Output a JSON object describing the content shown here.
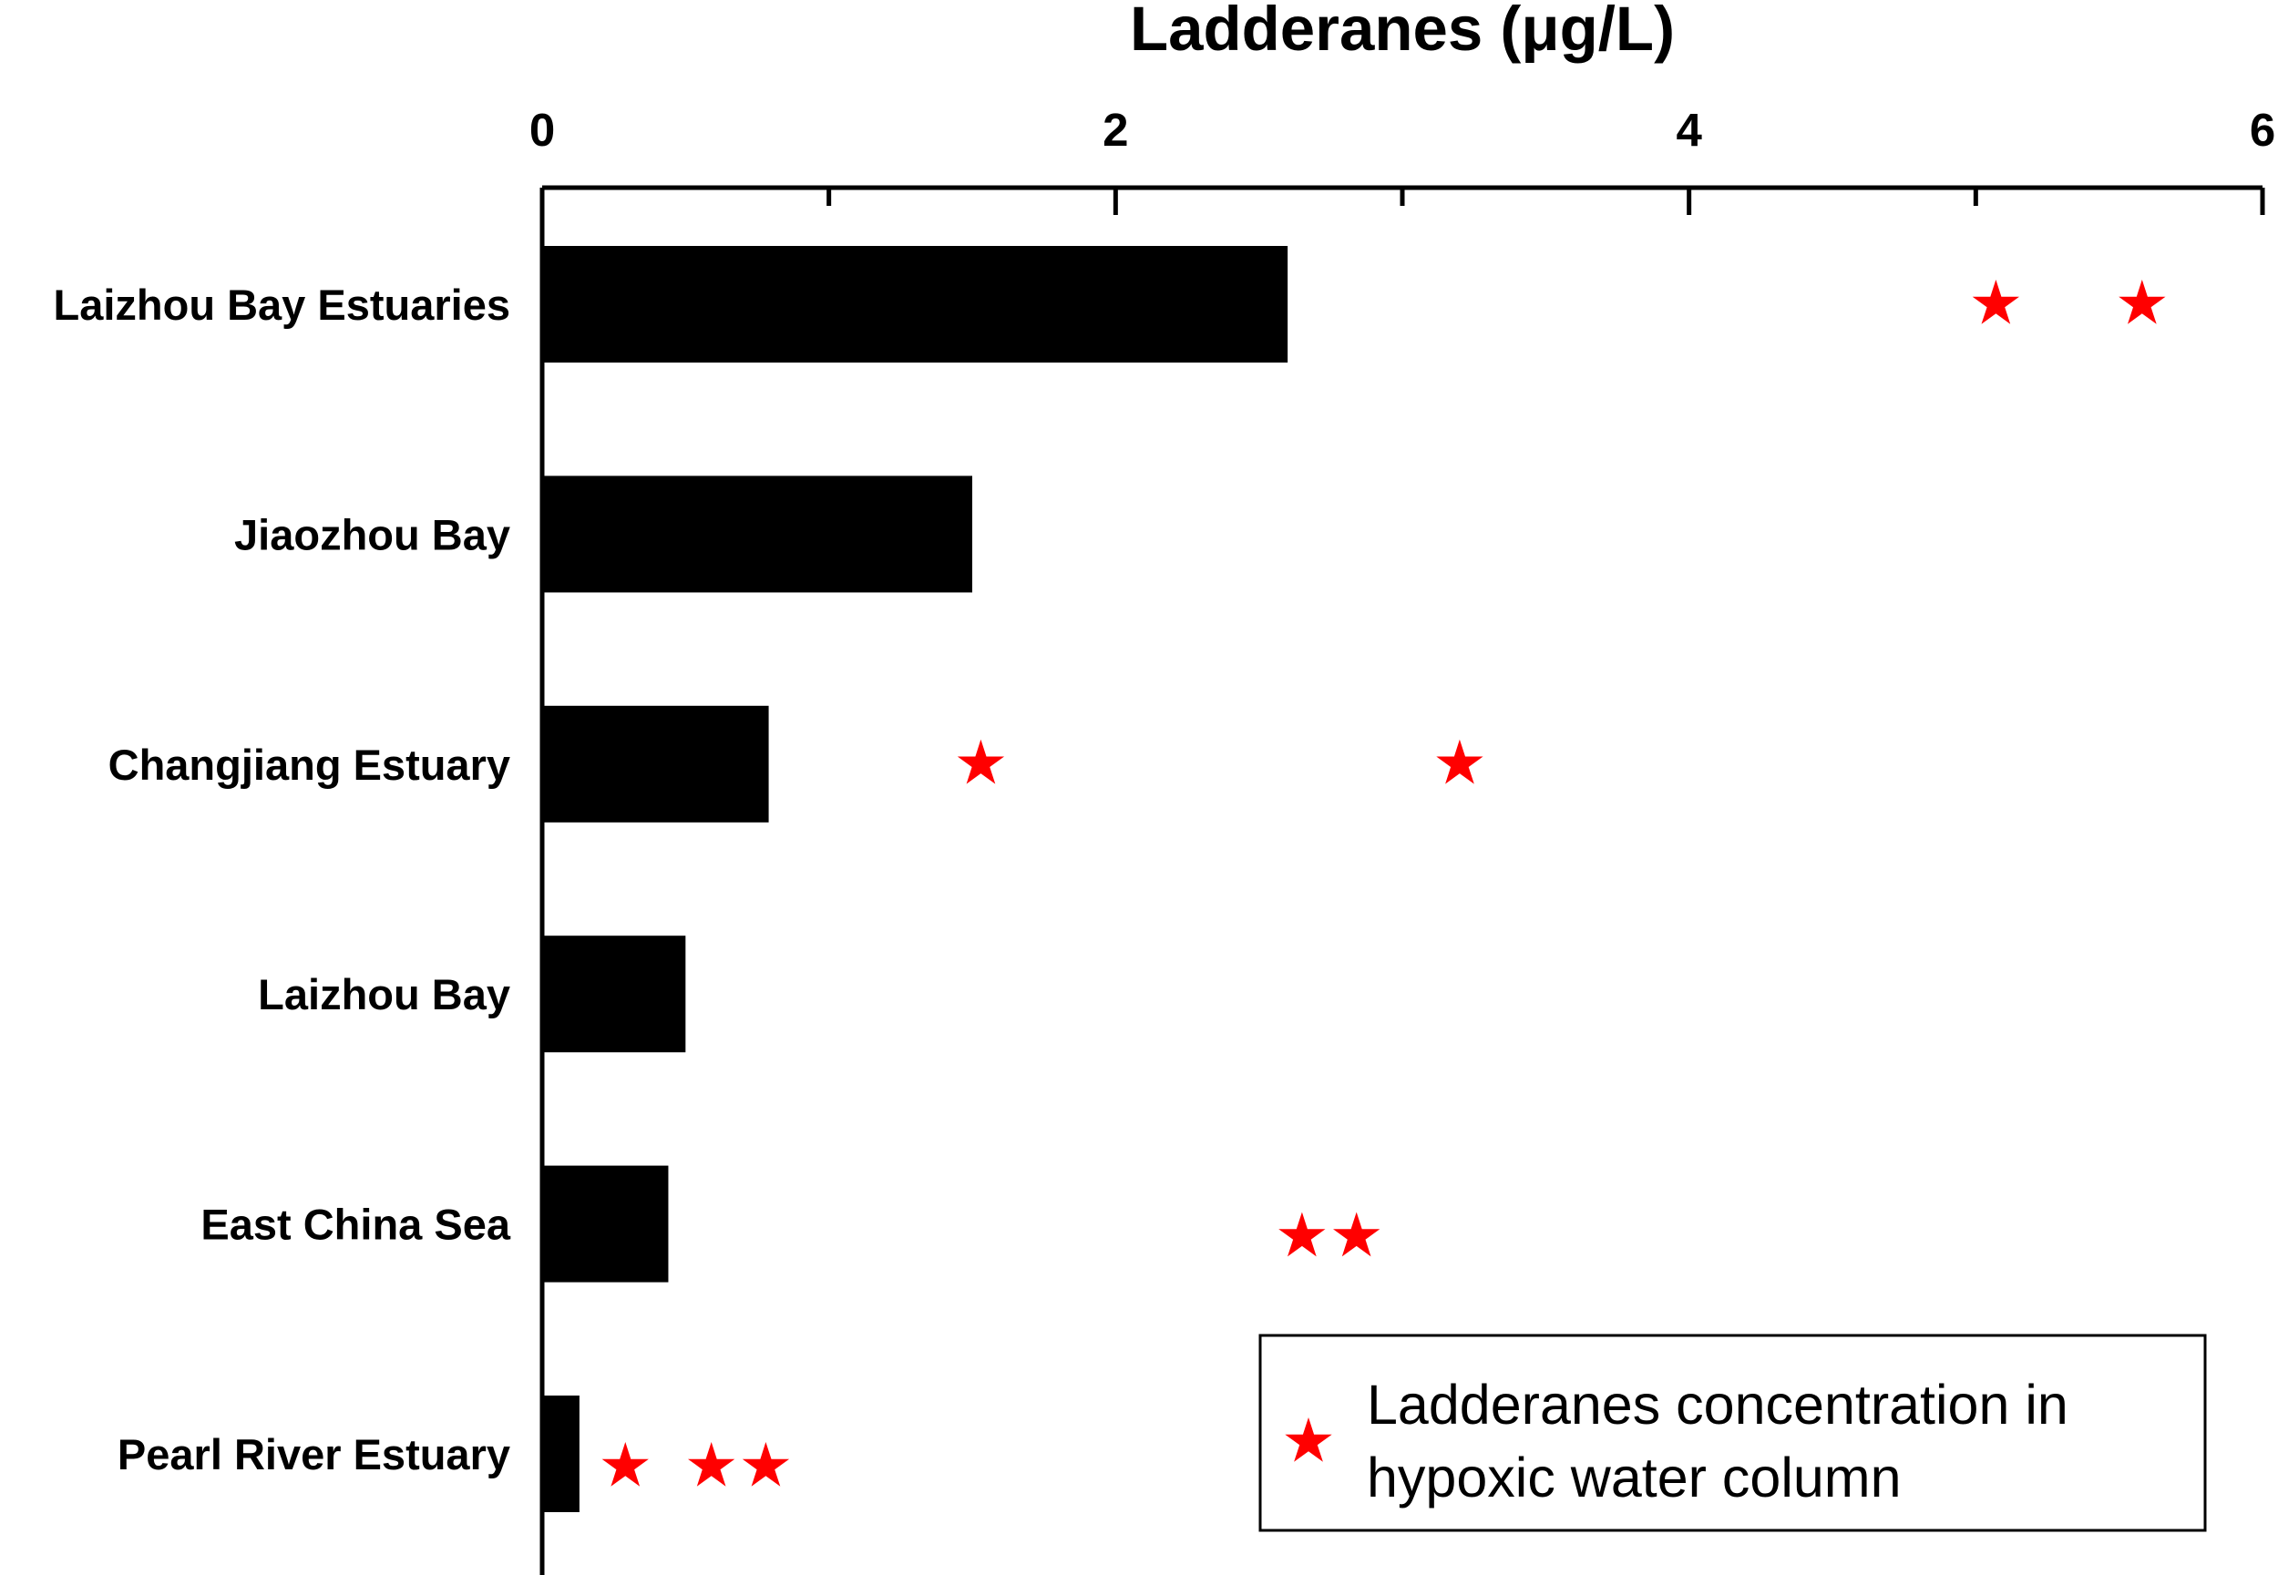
{
  "chart_data": {
    "type": "bar",
    "orientation": "horizontal",
    "xlabel": "Ladderanes (μg/L)",
    "xlim": [
      0,
      6
    ],
    "x_tick_labels": [
      "0",
      "2",
      "4",
      "6"
    ],
    "x_minor_ticks": [
      1,
      3,
      5
    ],
    "x_axis_position": "top",
    "categories": [
      "Laizhou Bay Estuaries",
      "Jiaozhou Bay",
      "Changjiang Estuary",
      "Laizhou Bay",
      "East China Sea",
      "Pearl River Estuary"
    ],
    "values": [
      2.6,
      1.5,
      0.79,
      0.5,
      0.44,
      0.13
    ],
    "bar_color": "#000000",
    "series": [
      {
        "name": "Ladderanes concentration in hypoxic water column",
        "marker": "star",
        "color": "#ff0000",
        "points": [
          {
            "category": "Laizhou Bay Estuaries",
            "values": [
              5.07,
              5.58
            ]
          },
          {
            "category": "Changjiang Estuary",
            "values": [
              1.53,
              3.2
            ]
          },
          {
            "category": "East China Sea",
            "values": [
              2.65,
              2.84
            ]
          },
          {
            "category": "Pearl River Estuary",
            "values": [
              0.29,
              0.59,
              0.78
            ]
          }
        ]
      }
    ],
    "legend": {
      "position": "bottom-right",
      "text_lines": [
        "Ladderanes concentration in",
        "hypoxic water column"
      ]
    },
    "grid": false
  }
}
